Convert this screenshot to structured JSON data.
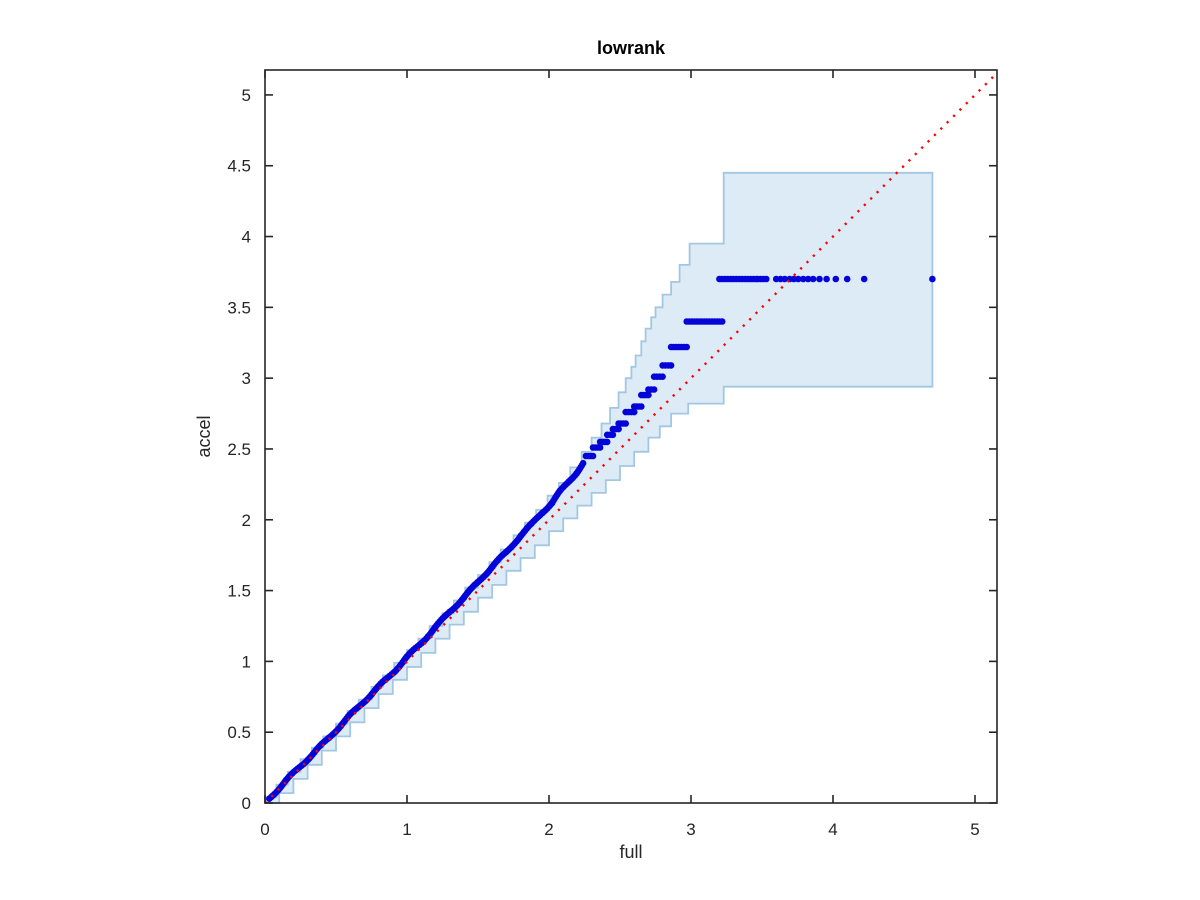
{
  "figure": {
    "background": "#ffffff"
  },
  "chart_data": {
    "type": "scatter",
    "title": "lowrank",
    "xlabel": "full",
    "ylabel": "accel",
    "xlim": [
      0,
      5.155
    ],
    "ylim": [
      0,
      5.176
    ],
    "x_ticks": [
      0,
      1,
      2,
      3,
      4,
      5
    ],
    "x_tick_labels": [
      "0",
      "1",
      "2",
      "3",
      "4",
      "5"
    ],
    "y_ticks": [
      0,
      0.5,
      1,
      1.5,
      2,
      2.5,
      3,
      3.5,
      4,
      4.5,
      5
    ],
    "y_tick_labels": [
      "0",
      "0.5",
      "1",
      "1.5",
      "2",
      "2.5",
      "3",
      "3.5",
      "4",
      "4.5",
      "5"
    ],
    "grid": false,
    "legend": "none",
    "colors": {
      "axis": "#262626",
      "title": "#000000",
      "band_fill": "#dcebf6",
      "band_edge": "#a3c7e0",
      "points": "#0404d8",
      "reference_line": "#ff0000",
      "background": "#ffffff"
    },
    "reference_line": {
      "style": "dotted",
      "from": [
        0,
        0
      ],
      "to": [
        5.155,
        5.155
      ]
    },
    "confidence_band": {
      "shape": "staircase-envelope",
      "upper_steps": [
        [
          0,
          0.04
        ],
        [
          0.08,
          0.13
        ],
        [
          0.16,
          0.22
        ],
        [
          0.25,
          0.31
        ],
        [
          0.33,
          0.39
        ],
        [
          0.41,
          0.47
        ],
        [
          0.5,
          0.56
        ],
        [
          0.58,
          0.65
        ],
        [
          0.66,
          0.73
        ],
        [
          0.75,
          0.82
        ],
        [
          0.83,
          0.9
        ],
        [
          0.91,
          0.99
        ],
        [
          1.0,
          1.08
        ],
        [
          1.08,
          1.16
        ],
        [
          1.16,
          1.25
        ],
        [
          1.25,
          1.34
        ],
        [
          1.33,
          1.43
        ],
        [
          1.41,
          1.52
        ],
        [
          1.5,
          1.61
        ],
        [
          1.58,
          1.7
        ],
        [
          1.66,
          1.79
        ],
        [
          1.75,
          1.89
        ],
        [
          1.83,
          1.98
        ],
        [
          1.91,
          2.07
        ],
        [
          1.99,
          2.17
        ],
        [
          2.07,
          2.26
        ],
        [
          2.15,
          2.37
        ],
        [
          2.23,
          2.48
        ],
        [
          2.3,
          2.58
        ],
        [
          2.37,
          2.68
        ],
        [
          2.43,
          2.79
        ],
        [
          2.49,
          2.9
        ],
        [
          2.54,
          3.0
        ],
        [
          2.58,
          3.08
        ],
        [
          2.61,
          3.16
        ],
        [
          2.65,
          3.26
        ],
        [
          2.68,
          3.35
        ],
        [
          2.72,
          3.43
        ],
        [
          2.75,
          3.5
        ],
        [
          2.8,
          3.59
        ],
        [
          2.86,
          3.68
        ],
        [
          2.92,
          3.8
        ],
        [
          2.99,
          3.95
        ],
        [
          3.23,
          4.45
        ],
        [
          4.7,
          4.45
        ]
      ],
      "lower_steps": [
        [
          0,
          0.0
        ],
        [
          0.1,
          0.07
        ],
        [
          0.2,
          0.17
        ],
        [
          0.3,
          0.27
        ],
        [
          0.4,
          0.37
        ],
        [
          0.5,
          0.47
        ],
        [
          0.6,
          0.57
        ],
        [
          0.7,
          0.67
        ],
        [
          0.8,
          0.77
        ],
        [
          0.9,
          0.87
        ],
        [
          1.0,
          0.96
        ],
        [
          1.1,
          1.06
        ],
        [
          1.2,
          1.16
        ],
        [
          1.3,
          1.26
        ],
        [
          1.4,
          1.35
        ],
        [
          1.5,
          1.45
        ],
        [
          1.6,
          1.54
        ],
        [
          1.7,
          1.64
        ],
        [
          1.8,
          1.73
        ],
        [
          1.9,
          1.82
        ],
        [
          2.0,
          1.92
        ],
        [
          2.1,
          2.01
        ],
        [
          2.2,
          2.1
        ],
        [
          2.3,
          2.19
        ],
        [
          2.4,
          2.28
        ],
        [
          2.5,
          2.38
        ],
        [
          2.6,
          2.48
        ],
        [
          2.7,
          2.58
        ],
        [
          2.78,
          2.66
        ],
        [
          2.86,
          2.75
        ],
        [
          2.98,
          2.82
        ],
        [
          3.23,
          2.94
        ],
        [
          4.7,
          2.94
        ]
      ]
    },
    "qq_points": {
      "marker_radius": 3.3,
      "dense_path": [
        [
          0.03,
          0.03
        ],
        [
          0.15,
          0.16
        ],
        [
          0.3,
          0.31
        ],
        [
          0.45,
          0.46
        ],
        [
          0.6,
          0.62
        ],
        [
          0.75,
          0.77
        ],
        [
          0.9,
          0.92
        ],
        [
          1.0,
          1.03
        ],
        [
          1.1,
          1.13
        ],
        [
          1.2,
          1.24
        ],
        [
          1.3,
          1.35
        ],
        [
          1.4,
          1.45
        ],
        [
          1.5,
          1.56
        ],
        [
          1.6,
          1.67
        ],
        [
          1.7,
          1.77
        ],
        [
          1.8,
          1.89
        ],
        [
          1.88,
          1.97
        ],
        [
          1.95,
          2.05
        ],
        [
          2.02,
          2.12
        ],
        [
          2.08,
          2.2
        ],
        [
          2.14,
          2.27
        ],
        [
          2.19,
          2.33
        ],
        [
          2.24,
          2.4
        ]
      ],
      "rows": [
        {
          "y": 2.45,
          "x_start": 2.26,
          "x_end": 2.31
        },
        {
          "y": 2.51,
          "x_start": 2.31,
          "x_end": 2.36
        },
        {
          "y": 2.55,
          "x_start": 2.36,
          "x_end": 2.41
        },
        {
          "y": 2.6,
          "x_start": 2.41,
          "x_end": 2.45
        },
        {
          "y": 2.64,
          "x_start": 2.45,
          "x_end": 2.49
        },
        {
          "y": 2.68,
          "x_start": 2.49,
          "x_end": 2.54
        },
        {
          "y": 2.76,
          "x_start": 2.54,
          "x_end": 2.6
        },
        {
          "y": 2.8,
          "x_start": 2.6,
          "x_end": 2.65
        },
        {
          "y": 2.88,
          "x_start": 2.65,
          "x_end": 2.7
        },
        {
          "y": 2.92,
          "x_start": 2.7,
          "x_end": 2.74
        },
        {
          "y": 3.01,
          "x_start": 2.74,
          "x_end": 2.8
        },
        {
          "y": 3.09,
          "x_start": 2.8,
          "x_end": 2.86
        },
        {
          "y": 3.22,
          "x_start": 2.86,
          "x_end": 2.97
        },
        {
          "y": 3.4,
          "x_start": 2.97,
          "x_end": 3.22
        },
        {
          "y": 3.7,
          "x_start": 3.2,
          "x_end": 3.28
        },
        {
          "y": 3.7,
          "x_start": 3.3,
          "x_end": 3.38
        },
        {
          "y": 3.7,
          "x_start": 3.4,
          "x_end": 3.46
        },
        {
          "y": 3.7,
          "x_start": 3.47,
          "x_end": 3.53
        }
      ],
      "sparse_points": [
        [
          3.6,
          3.7
        ],
        [
          3.63,
          3.7
        ],
        [
          3.66,
          3.7
        ],
        [
          3.695,
          3.7
        ],
        [
          3.725,
          3.7
        ],
        [
          3.755,
          3.7
        ],
        [
          3.79,
          3.7
        ],
        [
          3.825,
          3.7
        ],
        [
          3.86,
          3.7
        ],
        [
          3.905,
          3.7
        ],
        [
          3.955,
          3.7
        ],
        [
          4.02,
          3.7
        ],
        [
          4.1,
          3.7
        ],
        [
          4.22,
          3.7
        ],
        [
          4.7,
          3.7
        ]
      ]
    }
  }
}
